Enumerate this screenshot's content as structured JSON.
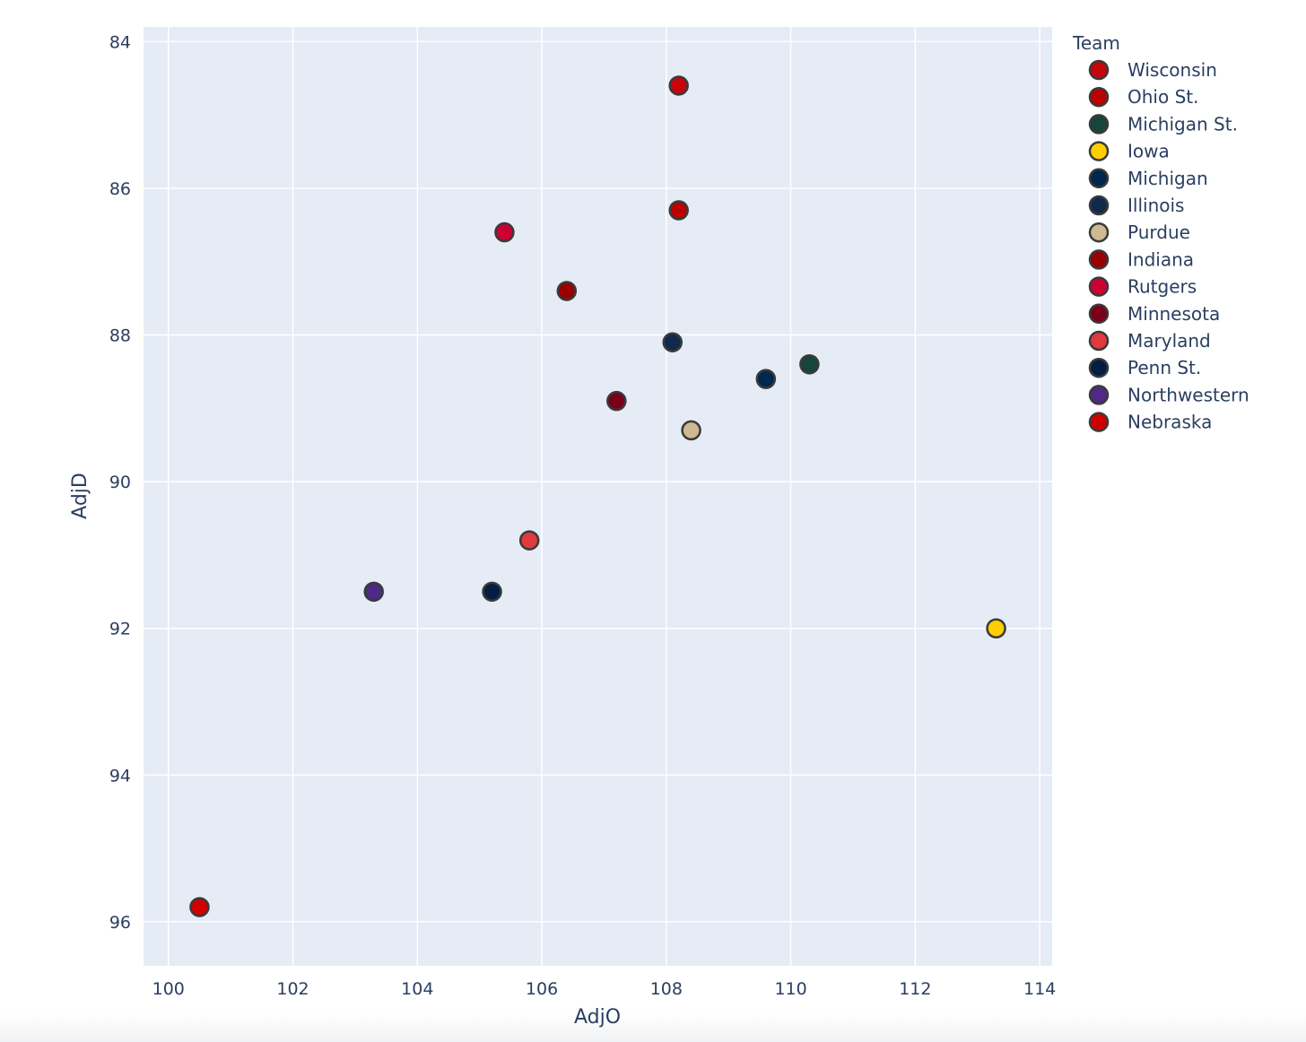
{
  "chart_data": {
    "type": "scatter",
    "xlabel": "AdjO",
    "ylabel": "AdjD",
    "xlim": [
      99.6,
      114.2
    ],
    "ylim": [
      96.6,
      83.8
    ],
    "y_reversed": true,
    "x_ticks": [
      100,
      102,
      104,
      106,
      108,
      110,
      112,
      114
    ],
    "y_ticks": [
      84,
      86,
      88,
      90,
      92,
      94,
      96
    ],
    "grid": true,
    "plot_background": "#e5ecf6",
    "marker_border_color": "#3a3a3a",
    "legend": {
      "title": "Team",
      "placement": "right"
    },
    "series": [
      {
        "name": "Wisconsin",
        "x": 108.2,
        "y": 84.6,
        "color": "#c5050c"
      },
      {
        "name": "Ohio St.",
        "x": 108.2,
        "y": 86.3,
        "color": "#bb0000"
      },
      {
        "name": "Michigan St.",
        "x": 110.3,
        "y": 88.4,
        "color": "#18453b"
      },
      {
        "name": "Iowa",
        "x": 113.3,
        "y": 92.0,
        "color": "#ffcd00"
      },
      {
        "name": "Michigan",
        "x": 109.6,
        "y": 88.6,
        "color": "#00274c"
      },
      {
        "name": "Illinois",
        "x": 108.1,
        "y": 88.1,
        "color": "#13294b"
      },
      {
        "name": "Purdue",
        "x": 108.4,
        "y": 89.3,
        "color": "#cfb991"
      },
      {
        "name": "Indiana",
        "x": 106.4,
        "y": 87.4,
        "color": "#990000"
      },
      {
        "name": "Rutgers",
        "x": 105.4,
        "y": 86.6,
        "color": "#cc0033"
      },
      {
        "name": "Minnesota",
        "x": 107.2,
        "y": 88.9,
        "color": "#7a0019"
      },
      {
        "name": "Maryland",
        "x": 105.8,
        "y": 90.8,
        "color": "#e03a3e"
      },
      {
        "name": "Penn St.",
        "x": 105.2,
        "y": 91.5,
        "color": "#041e42"
      },
      {
        "name": "Northwestern",
        "x": 103.3,
        "y": 91.5,
        "color": "#4e2a84"
      },
      {
        "name": "Nebraska",
        "x": 100.5,
        "y": 95.8,
        "color": "#d00000"
      }
    ]
  }
}
